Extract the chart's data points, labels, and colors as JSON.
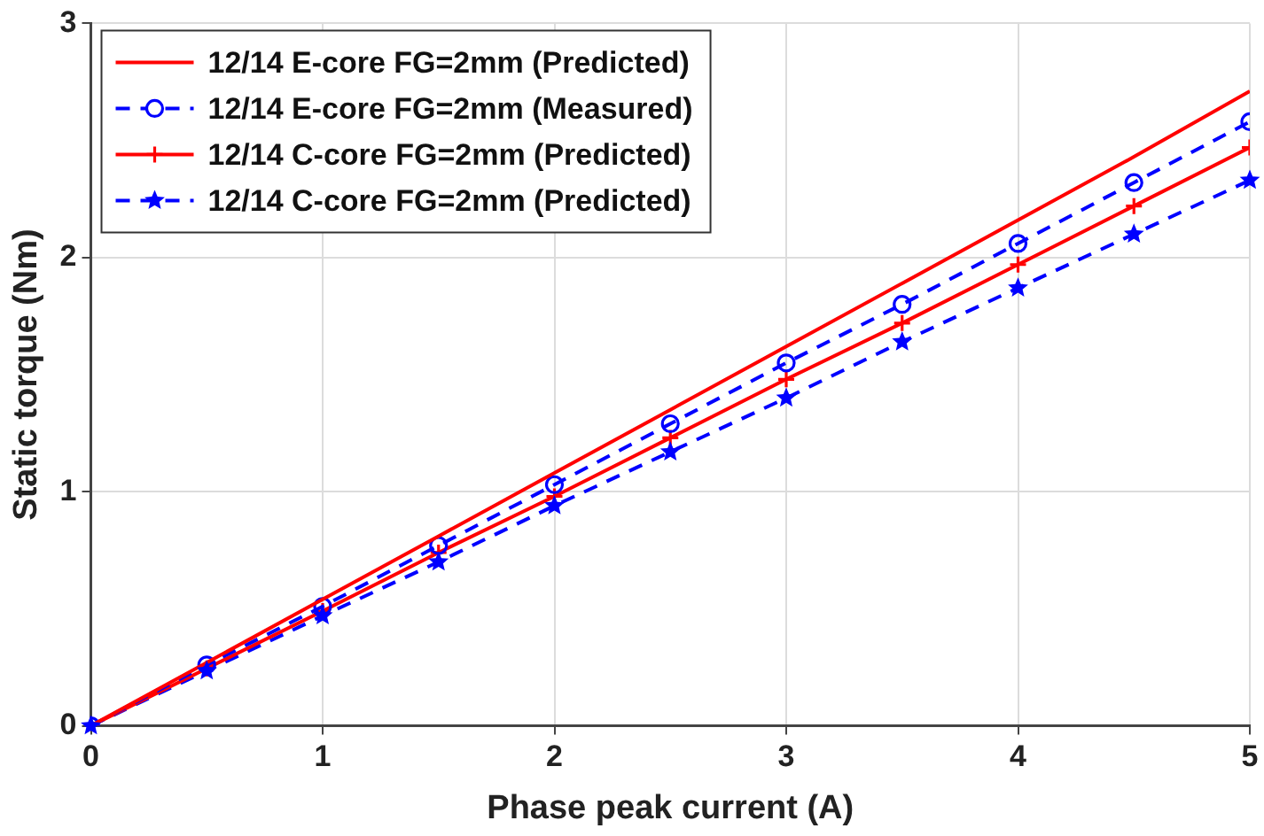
{
  "chart_data": {
    "type": "line",
    "xlabel": "Phase peak current (A)",
    "ylabel": "Static torque (Nm)",
    "x": [
      0,
      0.5,
      1,
      1.5,
      2,
      2.5,
      3,
      3.5,
      4,
      4.5,
      5
    ],
    "series": [
      {
        "name": "12/14 E-core FG=2mm (Predicted)",
        "color": "#ff0000",
        "marker": "none",
        "line_style": "solid",
        "values": [
          0,
          0.27,
          0.54,
          0.81,
          1.08,
          1.35,
          1.62,
          1.89,
          2.16,
          2.43,
          2.71
        ]
      },
      {
        "name": "12/14 E-core FG=2mm (Measured)",
        "color": "#0000ff",
        "marker": "circle",
        "line_style": "dashed",
        "values": [
          0,
          0.26,
          0.51,
          0.77,
          1.03,
          1.29,
          1.55,
          1.8,
          2.06,
          2.32,
          2.58
        ]
      },
      {
        "name": "12/14 C-core FG=2mm (Predicted)",
        "color": "#ff0000",
        "marker": "cross",
        "line_style": "solid",
        "values": [
          0,
          0.245,
          0.49,
          0.74,
          0.98,
          1.23,
          1.48,
          1.72,
          1.97,
          2.22,
          2.47
        ]
      },
      {
        "name": "12/14 C-core FG=2mm (Predicted)",
        "color": "#0000ff",
        "marker": "star",
        "line_style": "dashed",
        "values": [
          0,
          0.235,
          0.47,
          0.7,
          0.94,
          1.17,
          1.4,
          1.64,
          1.87,
          2.1,
          2.33
        ]
      }
    ],
    "xlim": [
      0,
      5
    ],
    "xticks": [
      0,
      1,
      2,
      3,
      4,
      5
    ],
    "ylim": [
      0,
      3
    ],
    "yticks": [
      0,
      1,
      2,
      3
    ],
    "grid": true,
    "legend": "top left"
  }
}
